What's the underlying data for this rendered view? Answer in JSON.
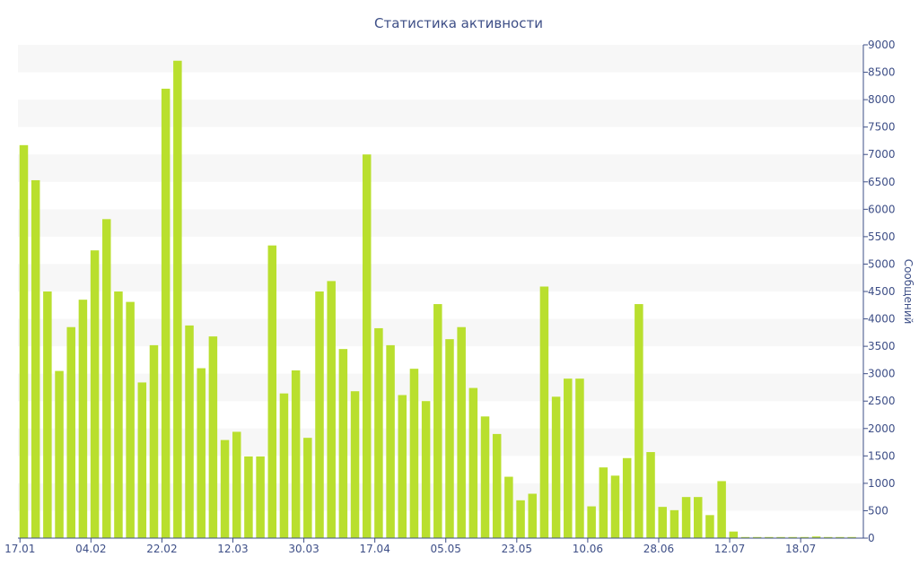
{
  "chart_data": {
    "type": "bar",
    "title": "Статистика активности",
    "xlabel": "",
    "ylabel": "Сообщений",
    "ylim": [
      0,
      9000
    ],
    "y_ticks": [
      0,
      500,
      1000,
      1500,
      2000,
      2500,
      3000,
      3500,
      4000,
      4500,
      5000,
      5500,
      6000,
      6500,
      7000,
      7500,
      8000,
      8500,
      9000
    ],
    "y_axis_side": "right",
    "grid": "alternating horizontal bands",
    "bar_color": "#b9df2e",
    "band_color": "#f7f7f7",
    "axis_color": "#3e4f87",
    "x_tick_labels": [
      {
        "index": 0,
        "label": "17.01"
      },
      {
        "index": 6,
        "label": "04.02"
      },
      {
        "index": 12,
        "label": "22.02"
      },
      {
        "index": 18,
        "label": "12.03"
      },
      {
        "index": 24,
        "label": "30.03"
      },
      {
        "index": 30,
        "label": "17.04"
      },
      {
        "index": 36,
        "label": "05.05"
      },
      {
        "index": 42,
        "label": "23.05"
      },
      {
        "index": 48,
        "label": "10.06"
      },
      {
        "index": 54,
        "label": "28.06"
      },
      {
        "index": 60,
        "label": "12.07"
      },
      {
        "index": 66,
        "label": "18.07"
      }
    ],
    "values": [
      7170,
      6530,
      4500,
      3050,
      3850,
      4350,
      5250,
      5820,
      4500,
      4310,
      2840,
      3520,
      8200,
      8710,
      3880,
      3100,
      3680,
      1790,
      1940,
      1490,
      1490,
      5340,
      2640,
      3060,
      1830,
      4500,
      4690,
      3450,
      2680,
      7000,
      3830,
      3520,
      2610,
      3090,
      2500,
      4270,
      3630,
      3850,
      2740,
      2220,
      1900,
      1120,
      690,
      810,
      4590,
      2580,
      2910,
      2910,
      580,
      1290,
      1140,
      1460,
      4270,
      1570,
      570,
      510,
      750,
      750,
      420,
      1040,
      120,
      20,
      20,
      20,
      20,
      20,
      20,
      30,
      20,
      20,
      20
    ]
  }
}
